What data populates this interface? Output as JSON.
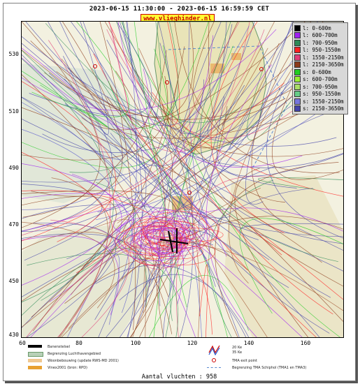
{
  "header": {
    "title": "2023-06-15 11:30:00 - 2023-06-15 16:59:59 CET",
    "brand": "www.vlieghinder.nl"
  },
  "axes": {
    "y_ticks": [
      "530",
      "510",
      "490",
      "470",
      "450",
      "430"
    ],
    "x_ticks": [
      "60",
      "80",
      "100",
      "120",
      "140",
      "160"
    ]
  },
  "legend": [
    {
      "label": "l: 0-600m",
      "color": "#000000"
    },
    {
      "label": "l: 600-700m",
      "color": "#a020f0"
    },
    {
      "label": "l: 700-950m",
      "color": "#2e8b57"
    },
    {
      "label": "l: 950-1550m",
      "color": "#ff2020"
    },
    {
      "label": "l: 1550-2150m",
      "color": "#e0407a"
    },
    {
      "label": "l: 2150-3650m",
      "color": "#8b3a1a"
    },
    {
      "label": "s: 0-600m",
      "color": "#22cc22"
    },
    {
      "label": "s: 600-700m",
      "color": "#99ee33"
    },
    {
      "label": "s: 700-950m",
      "color": "#aadd66"
    },
    {
      "label": "s: 950-1550m",
      "color": "#66cc88"
    },
    {
      "label": "s: 1550-2150m",
      "color": "#7777dd"
    },
    {
      "label": "s: 2150-3650m",
      "color": "#4444aa"
    }
  ],
  "map_legend": {
    "runway": "Banenstelsel",
    "airport_area": "Begrenzing Luchthavengebied",
    "housing": "Woonbebouwing (update RWS-MD 2001)",
    "vinex": "Vinex2001 (bron: RPD)",
    "ke_20": "20 Ke",
    "ke_35": "35 Ke",
    "tma_exit": "TMA exit point",
    "tma_boundary": "Begrenzing TMA Schiphol  (TMA1 en TMA3)"
  },
  "footer": {
    "count": "Aantal vluchten : 958"
  }
}
